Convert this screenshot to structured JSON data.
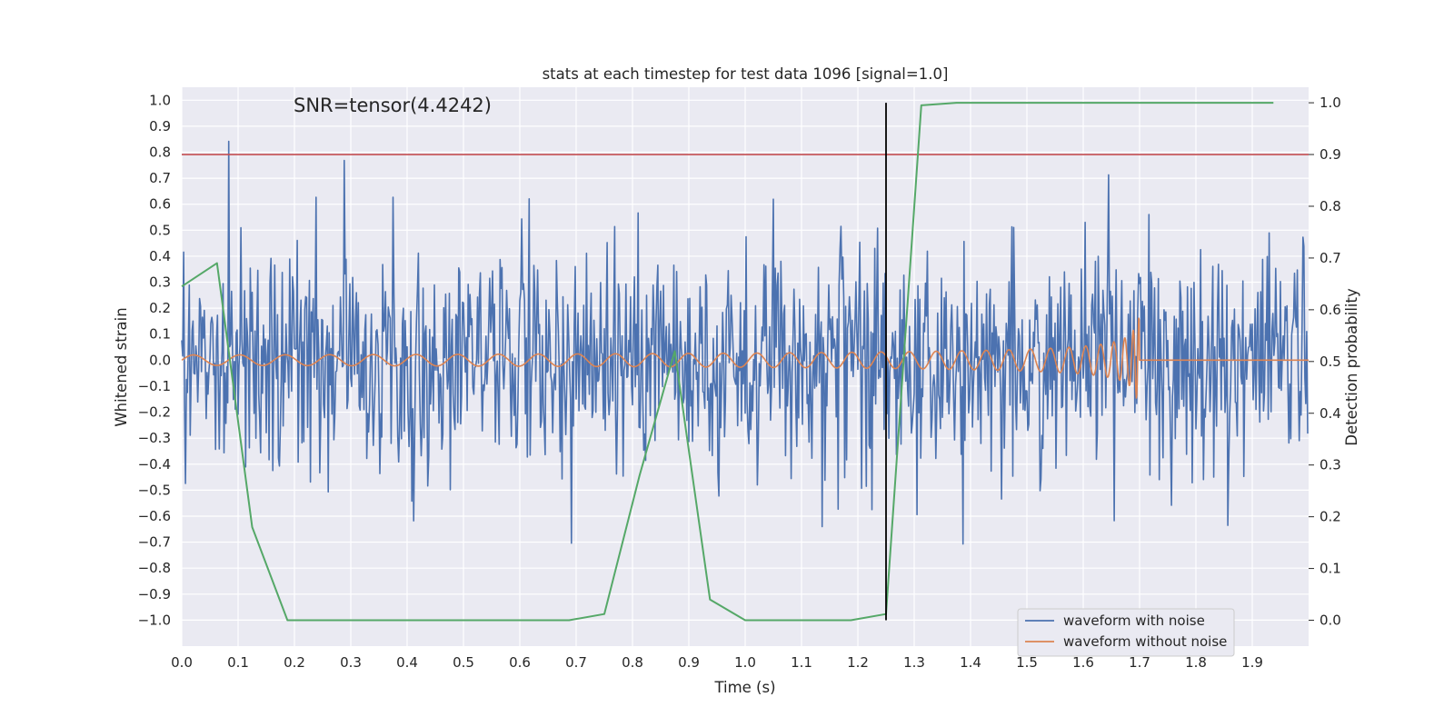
{
  "chart_data": {
    "type": "line",
    "title": "stats at each timestep for test data 1096 [signal=1.0]",
    "xlabel": "Time (s)",
    "ylabel": "Whitened strain",
    "y2label": "Detection probability",
    "annotation": "SNR=tensor(4.4242)",
    "xlim": [
      0,
      2.0
    ],
    "ylim": [
      -1.1,
      1.05
    ],
    "y2lim": [
      -0.05,
      1.03
    ],
    "xticks": [
      "0.0",
      "0.1",
      "0.2",
      "0.3",
      "0.4",
      "0.5",
      "0.6",
      "0.7",
      "0.8",
      "0.9",
      "1.0",
      "1.1",
      "1.2",
      "1.3",
      "1.4",
      "1.5",
      "1.6",
      "1.7",
      "1.8",
      "1.9"
    ],
    "yticks": [
      "1.0",
      "0.9",
      "0.8",
      "0.7",
      "0.6",
      "0.5",
      "0.4",
      "0.3",
      "0.2",
      "0.1",
      "0.0",
      "-0.1",
      "-0.2",
      "-0.3",
      "-0.4",
      "-0.5",
      "-0.6",
      "-0.7",
      "-0.8",
      "-0.9",
      "-1.0"
    ],
    "y2ticks": [
      "1.0",
      "0.9",
      "0.8",
      "0.7",
      "0.6",
      "0.5",
      "0.4",
      "0.3",
      "0.2",
      "0.1",
      "0.0"
    ],
    "grid": true,
    "legend_position": "lower-right",
    "threshold": {
      "y2": 0.9,
      "color": "#c44e52"
    },
    "marker_time": 1.25,
    "series": [
      {
        "name": "waveform with noise",
        "color": "#4c72b0",
        "noise_amplitude": 0.35,
        "samples": 1200
      },
      {
        "name": "waveform without noise",
        "color": "#dd8452",
        "chirp": {
          "start": 0.0,
          "merger": 1.7,
          "amp_start": 0.02,
          "amp_merger": 0.25
        }
      },
      {
        "name": "detection probability",
        "color": "#55a868",
        "axis": "right",
        "x": [
          0.0,
          0.0625,
          0.125,
          0.1875,
          0.25,
          0.3125,
          0.375,
          0.4375,
          0.5,
          0.5625,
          0.625,
          0.6875,
          0.75,
          0.8125,
          0.875,
          0.9375,
          1.0,
          1.0625,
          1.125,
          1.1875,
          1.25,
          1.3125,
          1.375,
          1.4375,
          1.5,
          1.5625,
          1.625,
          1.6875,
          1.75,
          1.8125,
          1.875,
          1.9375
        ],
        "values": [
          0.645,
          0.69,
          0.18,
          0.0,
          0.0,
          0.0,
          0.0,
          0.0,
          0.0,
          0.0,
          0.0,
          0.0,
          0.012,
          0.28,
          0.52,
          0.04,
          0.0,
          0.0,
          0.0,
          0.0,
          0.012,
          0.995,
          1.0,
          1.0,
          1.0,
          1.0,
          1.0,
          1.0,
          1.0,
          1.0,
          1.0,
          1.0
        ]
      }
    ]
  }
}
